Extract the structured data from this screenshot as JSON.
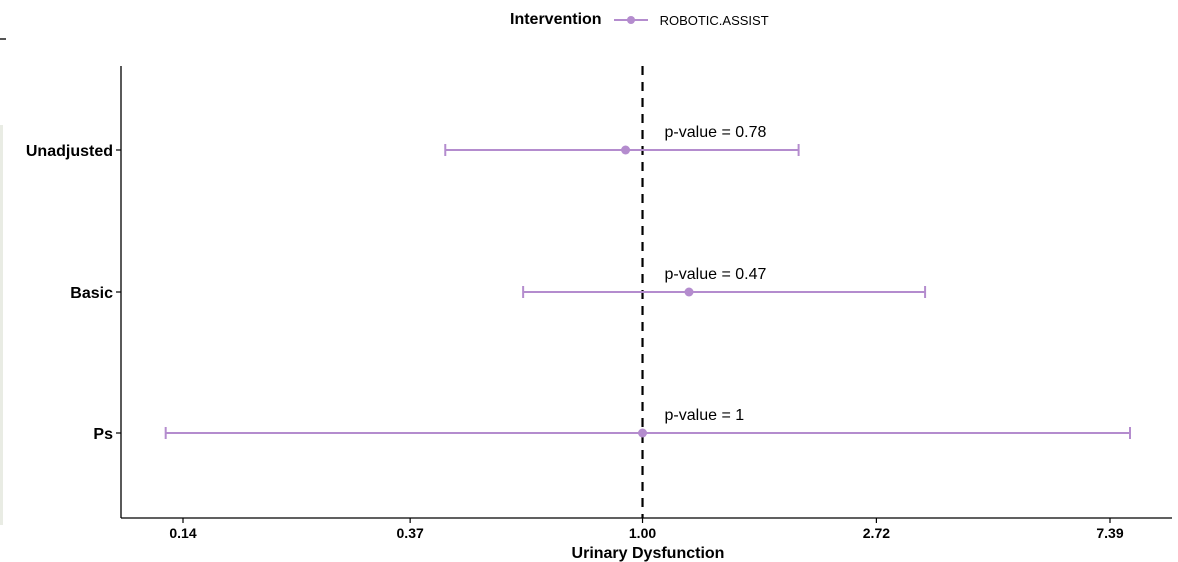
{
  "legend": {
    "title": "Intervention",
    "label": "ROBOTIC.ASSIST"
  },
  "colors": {
    "series": "#b48cce",
    "axis": "#000000",
    "reference_line": "#000000"
  },
  "chart_data": {
    "type": "forest",
    "xlabel": "Urinary Dysfunction",
    "ylabel": "",
    "x_scale": "log",
    "x_ticks": [
      0.14,
      0.37,
      1.0,
      2.72,
      7.39
    ],
    "x_tick_labels": [
      "0.14",
      "0.37",
      "1.00",
      "2.72",
      "7.39"
    ],
    "xlim": [
      0.11,
      9.0
    ],
    "reference_line": 1.0,
    "grid": false,
    "legend_position": "top",
    "series": [
      {
        "name": "ROBOTIC.ASSIST"
      }
    ],
    "rows": [
      {
        "label": "Unadjusted",
        "estimate": 0.93,
        "lower": 0.43,
        "upper": 1.95,
        "annotation": "p-value = 0.78"
      },
      {
        "label": "Basic",
        "estimate": 1.22,
        "lower": 0.6,
        "upper": 3.35,
        "annotation": "p-value = 0.47"
      },
      {
        "label": "Ps",
        "estimate": 1.0,
        "lower": 0.13,
        "upper": 8.05,
        "annotation": "p-value = 1"
      }
    ]
  }
}
